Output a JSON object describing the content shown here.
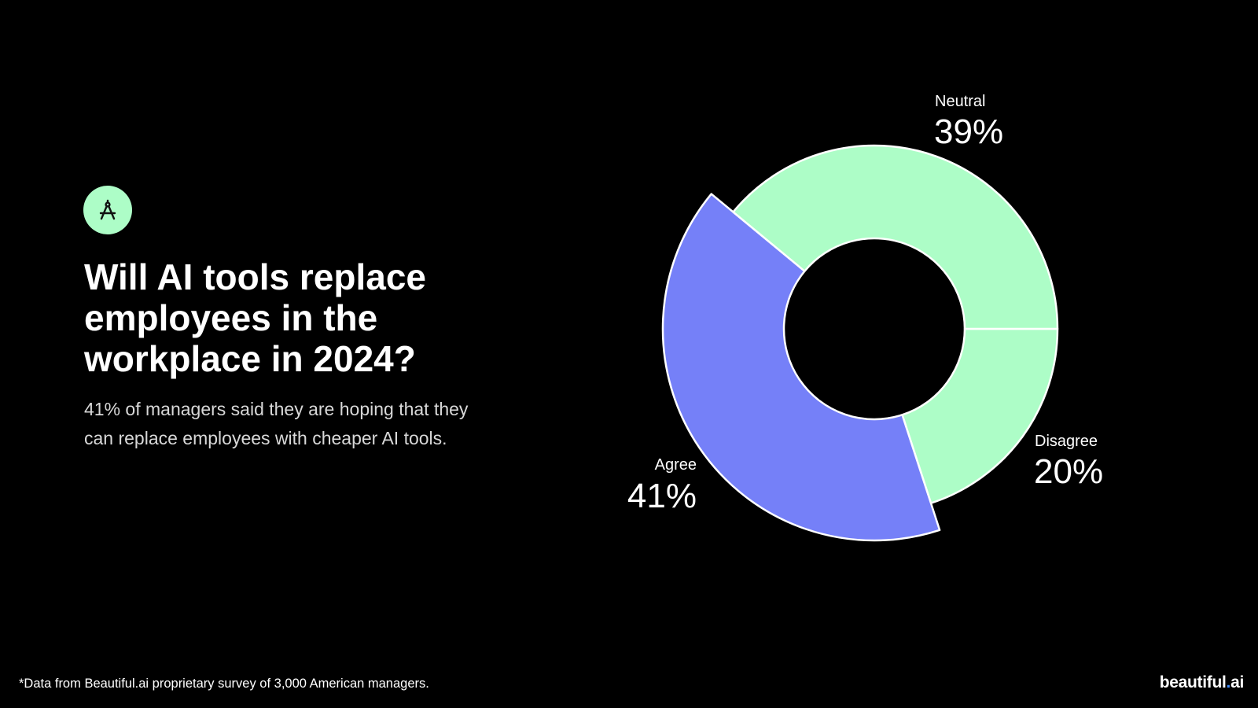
{
  "header": {
    "icon": "compass-drafting-icon",
    "title": "Will AI tools replace employees in the workplace in 2024?",
    "subtitle": "41% of managers said they are hoping that they can replace employees with cheaper AI tools."
  },
  "footer": {
    "note": "*Data from Beautiful.ai proprietary survey of 3,000 American managers.",
    "logo_main": "beautiful",
    "logo_dot": ".",
    "logo_suffix": "ai"
  },
  "colors": {
    "background": "#000000",
    "neutral": "#adfdc7",
    "disagree": "#adfdc7",
    "agree": "#7580f8",
    "badge": "#adfdc7",
    "stroke": "#ffffff"
  },
  "chart_data": {
    "type": "pie",
    "style": "donut",
    "start": "east, clockwise",
    "slices": [
      {
        "label": "Disagree",
        "value": 20,
        "display": "20%",
        "color": "#adfdc7",
        "exploded": false
      },
      {
        "label": "Agree",
        "value": 41,
        "display": "41%",
        "color": "#7580f8",
        "exploded": true
      },
      {
        "label": "Neutral",
        "value": 39,
        "display": "39%",
        "color": "#adfdc7",
        "exploded": false
      }
    ]
  }
}
